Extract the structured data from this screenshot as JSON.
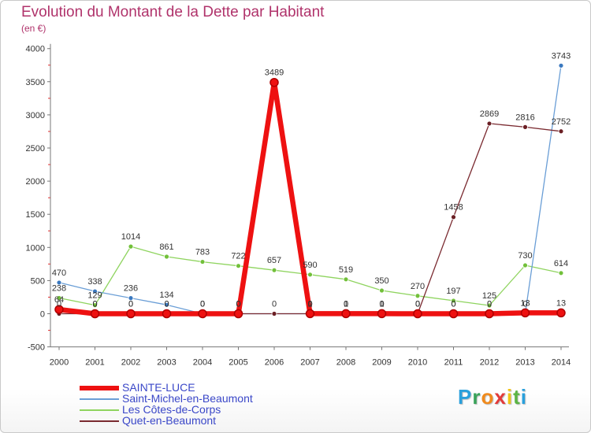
{
  "chart_data": {
    "type": "line",
    "title": "Evolution du Montant de la Dette par Habitant",
    "subtitle": "(en €)",
    "categories": [
      "2000",
      "2001",
      "2002",
      "2003",
      "2004",
      "2005",
      "2006",
      "2007",
      "2008",
      "2009",
      "2010",
      "2011",
      "2012",
      "2013",
      "2014"
    ],
    "ylim": [
      -500,
      4000
    ],
    "yticks": [
      "-500",
      "0",
      "500",
      "1000",
      "1500",
      "2000",
      "2500",
      "3000",
      "3500",
      "4000"
    ],
    "series": [
      {
        "name": "Les Côtes-de-Corps",
        "color": "#8fd45f",
        "dot": "#72c03a",
        "width": 1.3,
        "values": [
          238,
          129,
          1014,
          861,
          783,
          722,
          657,
          590,
          519,
          350,
          270,
          197,
          125,
          730,
          614
        ],
        "labels": [
          "238",
          "129",
          "1014",
          "861",
          "783",
          "722",
          "657",
          "590",
          "519",
          "350",
          "270",
          "197",
          "125",
          "730",
          "614"
        ]
      },
      {
        "name": "Saint-Michel-en-Beaumont",
        "color": "#6a9ed6",
        "dot": "#3a78bf",
        "width": 1.3,
        "values": [
          470,
          338,
          236,
          134,
          0,
          0,
          null,
          0,
          0,
          0,
          0,
          0,
          0,
          0,
          3743
        ],
        "labels": [
          "470",
          "338",
          "236",
          "134",
          "0",
          "0",
          "",
          "0",
          "0",
          "0",
          "0",
          "0",
          "0",
          "0",
          "3743"
        ]
      },
      {
        "name": "Quet-en-Beaumont",
        "color": "#7a2a30",
        "dot": "#6b1f24",
        "width": 1.3,
        "values": [
          0,
          0,
          0,
          0,
          0,
          0,
          0,
          0,
          0,
          0,
          0,
          1458,
          2869,
          2816,
          2752
        ],
        "labels": [
          "0",
          "0",
          "0",
          "0",
          "0",
          "0",
          "0",
          "0",
          "0",
          "0",
          "0",
          "1458",
          "2869",
          "2816",
          "2752"
        ]
      },
      {
        "name": "SAINTE-LUCE",
        "color": "#ee1111",
        "dot": "#ee1111",
        "width": 6.5,
        "values": [
          64,
          0,
          0,
          0,
          0,
          0,
          3489,
          1,
          1,
          1,
          0,
          0,
          0,
          13,
          13
        ],
        "labels": [
          "64",
          "0",
          "0",
          "0",
          "0",
          "0",
          "3489",
          "1",
          "1",
          "1",
          "0",
          "0",
          "0",
          "13",
          "13"
        ]
      }
    ]
  },
  "legend": {
    "items": [
      {
        "label": "SAINTE-LUCE",
        "color": "#ee1111",
        "thickness": 6
      },
      {
        "label": "Saint-Michel-en-Beaumont",
        "color": "#6a9ed6",
        "thickness": 2
      },
      {
        "label": "Les Côtes-de-Corps",
        "color": "#8fd45f",
        "thickness": 2
      },
      {
        "label": "Quet-en-Beaumont",
        "color": "#7a2a30",
        "thickness": 2
      }
    ]
  },
  "logo": {
    "letters": [
      "P",
      "r",
      "o",
      "x",
      "i",
      "t",
      "i"
    ],
    "colors": [
      "#2aa0dc",
      "#3aa35a",
      "#f08a1c",
      "#e23a3a",
      "#f0c419",
      "#5bb445",
      "#2aa0dc"
    ]
  }
}
